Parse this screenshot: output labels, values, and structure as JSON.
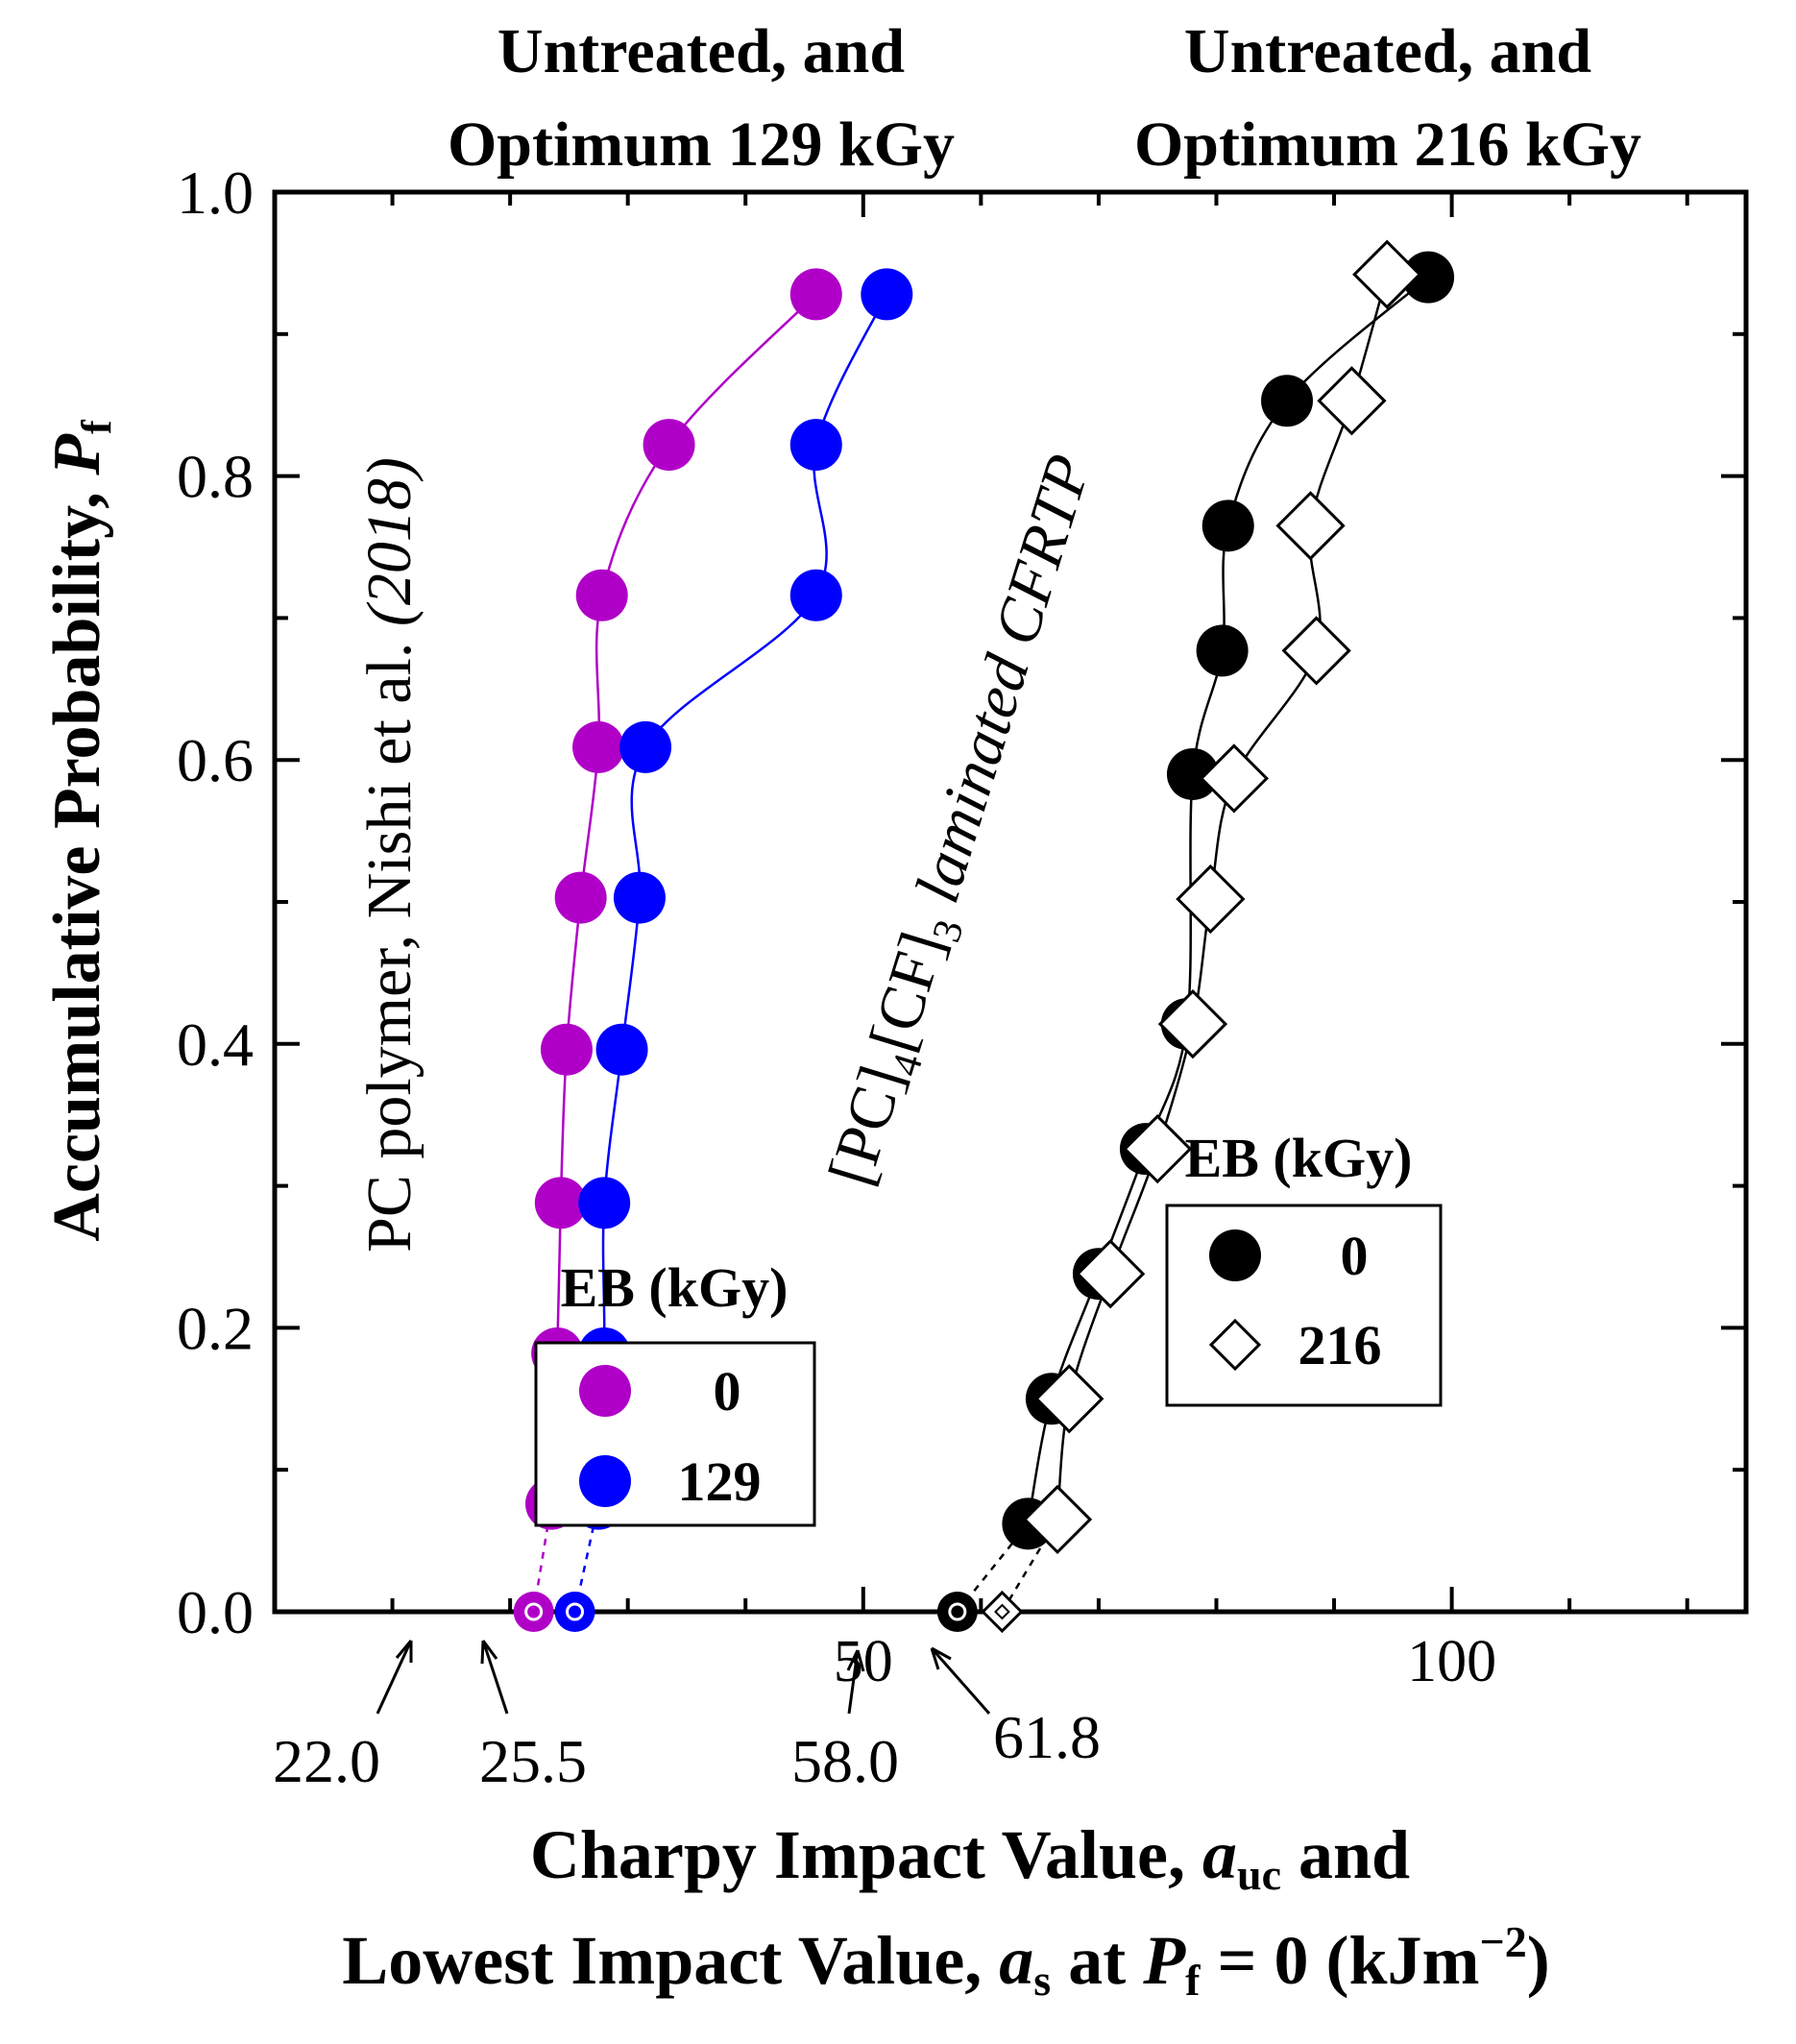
{
  "chart_data": {
    "type": "scatter",
    "headers": [
      {
        "line1": "Untreated, and",
        "line2": "Optimum 129 kGy"
      },
      {
        "line1": "Untreated, and",
        "line2": "Optimum 216 kGy"
      }
    ],
    "ylabel": {
      "main": "Accumulative  Probability, ",
      "var": "P",
      "sub": "f"
    },
    "xlabel": {
      "line1_a": "Charpy Impact Value, ",
      "line1_var": "a",
      "line1_sub": "uc",
      "line1_b": "  and",
      "line2_a": "Lowest Impact Value, ",
      "line2_var": "a",
      "line2_sub": "s",
      "line2_b": " at ",
      "line2_var2": "P",
      "line2_sub2": "f",
      "line2_c": " = 0 (kJm",
      "line2_sup": "−2",
      "line2_d": ")"
    },
    "xlim": [
      0,
      125
    ],
    "ylim": [
      0,
      1.0
    ],
    "x_ticks_major": [
      50,
      100
    ],
    "x_ticks_minor": [
      10,
      20,
      30,
      40,
      60,
      70,
      80,
      90,
      110,
      120
    ],
    "x_tick_labels": [
      "50",
      "100"
    ],
    "y_ticks_major": [
      0,
      0.2,
      0.4,
      0.6,
      0.8,
      1.0
    ],
    "y_ticks_minor": [
      0.1,
      0.3,
      0.5,
      0.7,
      0.9
    ],
    "y_tick_labels": [
      "0.0",
      "0.2",
      "0.4",
      "0.6",
      "0.8",
      "1.0"
    ],
    "annotations": {
      "pc_text_a": "PC polymer, Nishi et al.",
      "pc_text_b": " (2018)",
      "cfrtp_a": "[PC]",
      "cfrtp_sub1": "4",
      "cfrtp_b": "[CF]",
      "cfrtp_sub2": "3",
      "cfrtp_c": "  laminated  CFRTP"
    },
    "lowest_values": [
      {
        "label": "22.0",
        "value": 22.0
      },
      {
        "label": "25.5",
        "value": 25.5
      },
      {
        "label": "58.0",
        "value": 58.0
      },
      {
        "label": "61.8",
        "value": 61.8
      }
    ],
    "legends": [
      {
        "title": "EB (kGy)",
        "entries": [
          {
            "label": "0",
            "series": 0
          },
          {
            "label": "129",
            "series": 1
          }
        ]
      },
      {
        "title": "EB (kGy)",
        "entries": [
          {
            "label": "0",
            "series": 2
          },
          {
            "label": "216",
            "series": 3
          }
        ]
      }
    ],
    "series": [
      {
        "name": "PC 0 kGy",
        "color": "#b000c8",
        "marker": "circle",
        "lowest": 22.0,
        "x": [
          23.5,
          24.0,
          24.3,
          24.8,
          26.0,
          27.5,
          27.8,
          33.5,
          46.0
        ],
        "y": [
          0.076,
          0.182,
          0.288,
          0.396,
          0.503,
          0.609,
          0.716,
          0.822,
          0.928
        ]
      },
      {
        "name": "PC 129 kGy",
        "color": "#0000ff",
        "marker": "circle",
        "lowest": 25.5,
        "x": [
          27.5,
          28.0,
          28.0,
          29.5,
          31.0,
          31.5,
          46.0,
          46.0,
          52.0
        ],
        "y": [
          0.076,
          0.182,
          0.288,
          0.396,
          0.503,
          0.609,
          0.716,
          0.822,
          0.928
        ]
      },
      {
        "name": "CFRTP 0 kGy",
        "color": "#000000",
        "marker": "circle",
        "lowest": 58.0,
        "x": [
          64.0,
          66.0,
          70.0,
          74.0,
          77.5,
          78.0,
          80.5,
          81.0,
          86.0,
          98.0
        ],
        "y": [
          0.062,
          0.15,
          0.238,
          0.326,
          0.414,
          0.59,
          0.677,
          0.765,
          0.853,
          0.94
        ]
      },
      {
        "name": "CFRTP 216 kGy",
        "color": "#000000",
        "marker": "diamond",
        "lowest": 61.8,
        "x": [
          66.5,
          67.5,
          71.0,
          75.0,
          78.0,
          79.5,
          81.5,
          88.5,
          88.0,
          91.5,
          94.5
        ],
        "y": [
          0.065,
          0.15,
          0.238,
          0.326,
          0.414,
          0.502,
          0.587,
          0.677,
          0.765,
          0.853,
          0.942
        ]
      }
    ]
  }
}
